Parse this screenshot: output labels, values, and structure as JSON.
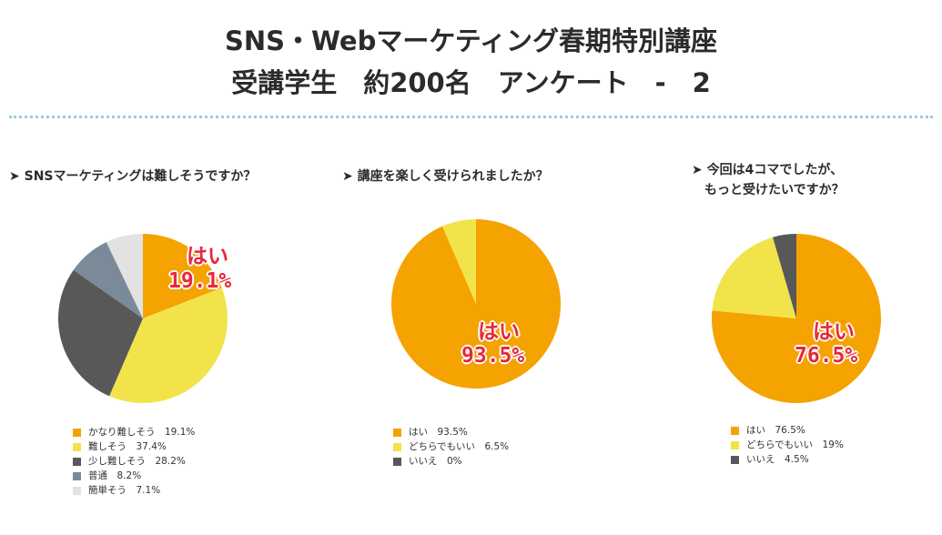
{
  "header": {
    "title_line1": "SNS・Webマーケティング春期特別講座",
    "title_line2": "受講学生　約200名　アンケート　-　2"
  },
  "chart_data": [
    {
      "type": "pie",
      "title": "➤ SNSマーケティングは難しそうですか？",
      "labels": [
        "かなり難しそう",
        "難しそう",
        "少し難しそう",
        "普通",
        "簡単そう"
      ],
      "values": [
        19.1,
        37.4,
        28.2,
        8.2,
        7.1
      ],
      "colors": [
        "#f5a300",
        "#f3e34a",
        "#585858",
        "#7a8a99",
        "#e2e2e2"
      ],
      "legend": [
        "かなり難しそう　19.1%",
        "難しそう　37.4%",
        "少し難しそう　28.2%",
        "普通　8.2%",
        "簡単そう　7.1%"
      ],
      "callout": [
        "はい",
        "19.1%"
      ]
    },
    {
      "type": "pie",
      "title": "➤ 講座を楽しく受けられましたか？",
      "labels": [
        "はい",
        "どちらでもいい",
        "いいえ"
      ],
      "values": [
        93.5,
        6.5,
        0
      ],
      "colors": [
        "#f5a300",
        "#f3e34a",
        "#585858"
      ],
      "legend": [
        "はい　93.5%",
        "どちらでもいい　6.5%",
        "いいえ　0%"
      ],
      "callout": [
        "はい",
        "93.5%"
      ]
    },
    {
      "type": "pie",
      "title": "➤ 今回は4コマでしたが、\n　もっと受けたいですか？",
      "labels": [
        "はい",
        "どちらでもいい",
        "いいえ"
      ],
      "values": [
        76.5,
        19,
        4.5
      ],
      "colors": [
        "#f5a300",
        "#f3e34a",
        "#585858"
      ],
      "legend": [
        "はい　76.5%",
        "どちらでもいい　19%",
        "いいえ　4.5%"
      ],
      "callout": [
        "はい",
        "76.5%"
      ]
    }
  ]
}
